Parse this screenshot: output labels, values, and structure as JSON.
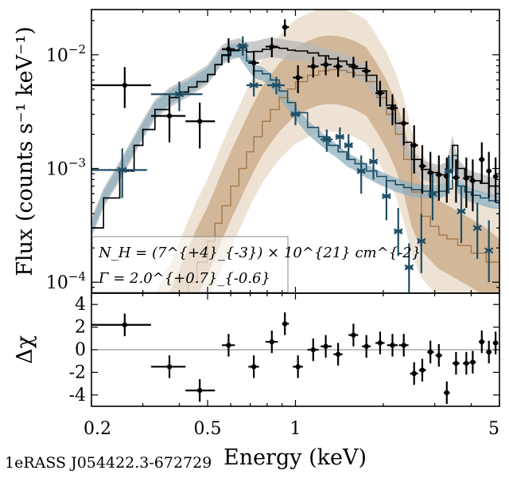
{
  "caption": "1eRASS J054422.3-672729",
  "colors": {
    "total": "#000000",
    "total_band": "#b8b8b8",
    "soft": "#1f4e64",
    "soft_band": "#8fb0bf",
    "hard": "#a5764a",
    "hard_band_inner": "#d2b899",
    "hard_band_outer": "#ede2d4"
  },
  "annotation": {
    "nh_text": "N_H = (7^{+4}_{-3}) × 10^{21} cm^{-2}",
    "gamma_text": "Γ = 2.0^{+0.7}_{-0.6}"
  },
  "chart_data": [
    {
      "type": "scatter",
      "panel": "spectrum",
      "ylabel": "Flux (counts s⁻¹ keV⁻¹)",
      "xlabel": "",
      "xscale": "log",
      "yscale": "log",
      "xlim": [
        0.2,
        5
      ],
      "ylim": [
        8e-05,
        0.025
      ],
      "x_ticks": [
        "0.2",
        "0.5",
        "1",
        "5"
      ],
      "y_ticks": [
        {
          "value": 0.01,
          "mantissa": "10",
          "exp": "−2"
        },
        {
          "value": 0.001,
          "mantissa": "10",
          "exp": "−3"
        },
        {
          "value": 0.0001,
          "mantissa": "10",
          "exp": "−4"
        }
      ],
      "series": [
        {
          "name": "data (dots)",
          "marker": "dot",
          "points": [
            {
              "x": 0.26,
              "y": 0.0054,
              "xlo": 0.2,
              "xhi": 0.32,
              "ylo": 0.0034,
              "yhi": 0.0078
            },
            {
              "x": 0.37,
              "y": 0.0029,
              "xlo": 0.32,
              "xhi": 0.42,
              "ylo": 0.0017,
              "yhi": 0.0044
            },
            {
              "x": 0.47,
              "y": 0.0026,
              "xlo": 0.42,
              "xhi": 0.53,
              "ylo": 0.0015,
              "yhi": 0.0038
            },
            {
              "x": 0.59,
              "y": 0.0112,
              "xlo": 0.56,
              "xhi": 0.62,
              "ylo": 0.0085,
              "yhi": 0.014
            },
            {
              "x": 0.72,
              "y": 0.0085,
              "xlo": 0.69,
              "xhi": 0.75,
              "ylo": 0.0063,
              "yhi": 0.0108
            },
            {
              "x": 0.83,
              "y": 0.0118,
              "xlo": 0.79,
              "xhi": 0.87,
              "ylo": 0.0095,
              "yhi": 0.0142
            },
            {
              "x": 0.92,
              "y": 0.0175,
              "xlo": 0.9,
              "xhi": 0.95,
              "ylo": 0.0145,
              "yhi": 0.0205
            },
            {
              "x": 1.02,
              "y": 0.0063,
              "xlo": 0.98,
              "xhi": 1.06,
              "ylo": 0.0046,
              "yhi": 0.0081
            },
            {
              "x": 1.15,
              "y": 0.0079,
              "xlo": 1.1,
              "xhi": 1.2,
              "ylo": 0.0063,
              "yhi": 0.0096
            },
            {
              "x": 1.27,
              "y": 0.0082,
              "xlo": 1.22,
              "xhi": 1.33,
              "ylo": 0.0066,
              "yhi": 0.0099
            },
            {
              "x": 1.4,
              "y": 0.0079,
              "xlo": 1.35,
              "xhi": 1.45,
              "ylo": 0.0064,
              "yhi": 0.0096
            },
            {
              "x": 1.58,
              "y": 0.0079,
              "xlo": 1.52,
              "xhi": 1.64,
              "ylo": 0.0063,
              "yhi": 0.0096
            },
            {
              "x": 1.75,
              "y": 0.0072,
              "xlo": 1.69,
              "xhi": 1.81,
              "ylo": 0.0058,
              "yhi": 0.0088
            },
            {
              "x": 1.95,
              "y": 0.0046,
              "xlo": 1.88,
              "xhi": 2.02,
              "ylo": 0.0035,
              "yhi": 0.0059
            },
            {
              "x": 2.15,
              "y": 0.0034,
              "xlo": 2.06,
              "xhi": 2.24,
              "ylo": 0.0024,
              "yhi": 0.0045
            },
            {
              "x": 2.35,
              "y": 0.0025,
              "xlo": 2.26,
              "xhi": 2.44,
              "ylo": 0.0016,
              "yhi": 0.0034
            },
            {
              "x": 2.55,
              "y": 0.0016,
              "xlo": 2.47,
              "xhi": 2.63,
              "ylo": 0.0009,
              "yhi": 0.0024
            },
            {
              "x": 2.72,
              "y": 0.00105,
              "xlo": 2.65,
              "xhi": 2.8,
              "ylo": 0.0006,
              "yhi": 0.0016
            },
            {
              "x": 2.9,
              "y": 0.00092,
              "xlo": 2.83,
              "xhi": 2.98,
              "ylo": 0.00055,
              "yhi": 0.0014
            },
            {
              "x": 3.1,
              "y": 0.00088,
              "xlo": 3.02,
              "xhi": 3.18,
              "ylo": 0.00052,
              "yhi": 0.0013
            },
            {
              "x": 3.3,
              "y": 0.00085,
              "xlo": 3.22,
              "xhi": 3.38,
              "ylo": 0.0005,
              "yhi": 0.00125
            },
            {
              "x": 3.55,
              "y": 0.00083,
              "xlo": 3.45,
              "xhi": 3.65,
              "ylo": 0.0005,
              "yhi": 0.0012
            },
            {
              "x": 3.85,
              "y": 0.00082,
              "xlo": 3.75,
              "xhi": 3.95,
              "ylo": 0.00045,
              "yhi": 0.00125
            },
            {
              "x": 4.05,
              "y": 0.00078,
              "xlo": 3.95,
              "xhi": 4.15,
              "ylo": 0.00042,
              "yhi": 0.0012
            },
            {
              "x": 4.35,
              "y": 0.0012,
              "xlo": 4.25,
              "xhi": 4.45,
              "ylo": 0.00075,
              "yhi": 0.0017
            },
            {
              "x": 4.6,
              "y": 0.00095,
              "xlo": 4.5,
              "xhi": 4.7,
              "ylo": 0.00055,
              "yhi": 0.0014
            },
            {
              "x": 4.85,
              "y": 0.00085,
              "xlo": 4.75,
              "xhi": 4.95,
              "ylo": 0.0005,
              "yhi": 0.00125
            }
          ]
        },
        {
          "name": "data (stars)",
          "marker": "star",
          "points": [
            {
              "x": 0.255,
              "y": 0.00097,
              "xlo": 0.2,
              "xhi": 0.31,
              "ylo": 0.00055,
              "yhi": 0.0015
            },
            {
              "x": 0.4,
              "y": 0.0045,
              "xlo": 0.32,
              "xhi": 0.48,
              "ylo": 0.0032,
              "yhi": 0.0058
            },
            {
              "x": 0.66,
              "y": 0.012,
              "xlo": 0.63,
              "xhi": 0.69,
              "ylo": 0.0098,
              "yhi": 0.0145
            },
            {
              "x": 0.72,
              "y": 0.0054,
              "xlo": 0.68,
              "xhi": 0.77,
              "ylo": 0.0043,
              "yhi": 0.0066
            },
            {
              "x": 0.86,
              "y": 0.0054,
              "xlo": 0.8,
              "xhi": 0.92,
              "ylo": 0.0045,
              "yhi": 0.0064
            },
            {
              "x": 1.0,
              "y": 0.003,
              "xlo": 0.96,
              "xhi": 1.04,
              "ylo": 0.0024,
              "yhi": 0.0037
            },
            {
              "x": 1.28,
              "y": 0.0018,
              "xlo": 1.22,
              "xhi": 1.34,
              "ylo": 0.0014,
              "yhi": 0.0022
            },
            {
              "x": 1.42,
              "y": 0.0019,
              "xlo": 1.37,
              "xhi": 1.47,
              "ylo": 0.0015,
              "yhi": 0.0023
            },
            {
              "x": 1.52,
              "y": 0.0016,
              "xlo": 1.47,
              "xhi": 1.57,
              "ylo": 0.0012,
              "yhi": 0.002
            },
            {
              "x": 1.68,
              "y": 0.00095,
              "xlo": 1.63,
              "xhi": 1.73,
              "ylo": 0.0006,
              "yhi": 0.0013
            },
            {
              "x": 1.85,
              "y": 0.00115,
              "xlo": 1.79,
              "xhi": 1.91,
              "ylo": 0.0008,
              "yhi": 0.0015
            },
            {
              "x": 2.05,
              "y": 0.00057,
              "xlo": 1.98,
              "xhi": 2.12,
              "ylo": 0.00035,
              "yhi": 0.0008
            },
            {
              "x": 2.25,
              "y": 0.00028,
              "xlo": 2.18,
              "xhi": 2.32,
              "ylo": 0.00017,
              "yhi": 0.00045
            },
            {
              "x": 2.45,
              "y": 0.000135,
              "xlo": 2.38,
              "xhi": 2.52,
              "ylo": 8e-05,
              "yhi": 0.00022
            },
            {
              "x": 2.7,
              "y": 0.00023,
              "xlo": 2.62,
              "xhi": 2.78,
              "ylo": 0.00012,
              "yhi": 0.0004
            },
            {
              "x": 2.95,
              "y": 0.0006,
              "xlo": 2.86,
              "xhi": 3.04,
              "ylo": 0.00035,
              "yhi": 0.0009
            },
            {
              "x": 3.35,
              "y": 0.00095,
              "xlo": 3.25,
              "xhi": 3.45,
              "ylo": 0.0006,
              "yhi": 0.0013
            },
            {
              "x": 3.7,
              "y": 0.00042,
              "xlo": 3.6,
              "xhi": 3.8,
              "ylo": 0.00022,
              "yhi": 0.0007
            },
            {
              "x": 4.2,
              "y": 0.0003,
              "xlo": 4.1,
              "xhi": 4.3,
              "ylo": 0.00016,
              "yhi": 0.0005
            },
            {
              "x": 4.6,
              "y": 0.00019,
              "xlo": 4.5,
              "xhi": 4.7,
              "ylo": 0.0001,
              "yhi": 0.00035
            }
          ]
        }
      ],
      "models": [
        {
          "name": "total model",
          "x": [
            0.2,
            0.22,
            0.25,
            0.28,
            0.3,
            0.33,
            0.37,
            0.4,
            0.43,
            0.46,
            0.5,
            0.53,
            0.56,
            0.6,
            0.64,
            0.68,
            0.72,
            0.77,
            0.82,
            0.88,
            0.94,
            1.0,
            1.1,
            1.2,
            1.3,
            1.4,
            1.5,
            1.6,
            1.75,
            1.9,
            2.05,
            2.2,
            2.35,
            2.5,
            2.7,
            2.9,
            3.1,
            3.3,
            3.45,
            3.6,
            3.8,
            4.0,
            4.3,
            4.6,
            5.0
          ],
          "y": [
            0.0003,
            0.00055,
            0.00095,
            0.0016,
            0.0022,
            0.0033,
            0.0042,
            0.0047,
            0.0052,
            0.0058,
            0.0067,
            0.0082,
            0.01,
            0.011,
            0.0115,
            0.0106,
            0.0107,
            0.0112,
            0.0116,
            0.0114,
            0.011,
            0.0108,
            0.0104,
            0.0098,
            0.0092,
            0.0088,
            0.0082,
            0.0076,
            0.0066,
            0.0048,
            0.0036,
            0.0025,
            0.0017,
            0.0012,
            0.00098,
            0.00092,
            0.00088,
            0.00093,
            0.0016,
            0.001,
            0.00085,
            0.00078,
            0.00074,
            0.0007,
            0.00066
          ],
          "band_factor": 1.22
        },
        {
          "name": "soft component",
          "x": [
            0.2,
            0.22,
            0.25,
            0.28,
            0.3,
            0.33,
            0.37,
            0.4,
            0.43,
            0.46,
            0.5,
            0.53,
            0.56,
            0.6,
            0.64,
            0.68,
            0.72,
            0.77,
            0.82,
            0.88,
            0.94,
            1.0,
            1.1,
            1.2,
            1.3,
            1.4,
            1.5,
            1.6,
            1.75,
            1.9,
            2.05,
            2.2,
            2.35,
            2.5,
            2.7,
            2.9,
            3.1,
            3.3,
            3.45,
            3.6,
            3.8,
            4.0,
            4.3,
            4.6,
            5.0
          ],
          "y": [
            0.0003,
            0.00055,
            0.00095,
            0.0016,
            0.0022,
            0.0033,
            0.0042,
            0.0047,
            0.0052,
            0.0058,
            0.0067,
            0.0082,
            0.0098,
            0.0108,
            0.011,
            0.0088,
            0.0072,
            0.0068,
            0.006,
            0.0048,
            0.0038,
            0.0031,
            0.0023,
            0.0019,
            0.0016,
            0.0014,
            0.0012,
            0.0011,
            0.00095,
            0.00085,
            0.00078,
            0.00072,
            0.00068,
            0.00065,
            0.00063,
            0.00062,
            0.00063,
            0.00066,
            0.0013,
            0.0007,
            0.00062,
            0.00058,
            0.00055,
            0.00052,
            0.0005
          ],
          "band_factor": 1.15
        },
        {
          "name": "hard component",
          "x": [
            0.3,
            0.33,
            0.37,
            0.4,
            0.43,
            0.46,
            0.5,
            0.53,
            0.56,
            0.6,
            0.64,
            0.68,
            0.72,
            0.77,
            0.82,
            0.88,
            0.94,
            1.0,
            1.1,
            1.2,
            1.3,
            1.4,
            1.5,
            1.6,
            1.75,
            1.9,
            2.05,
            2.2,
            2.35,
            2.5,
            2.7,
            2.9,
            3.1,
            3.3,
            3.6,
            4.0,
            4.5,
            5.0
          ],
          "y": [
            1.2e-05,
            2.2e-05,
            4e-05,
            6.5e-05,
            0.0001,
            0.00015,
            0.00023,
            0.00033,
            0.00047,
            0.0007,
            0.001,
            0.0014,
            0.0019,
            0.0026,
            0.0033,
            0.0042,
            0.005,
            0.0058,
            0.0066,
            0.0072,
            0.0074,
            0.0073,
            0.007,
            0.0066,
            0.0058,
            0.0042,
            0.003,
            0.002,
            0.0012,
            0.00062,
            0.00038,
            0.00031,
            0.00026,
            0.00024,
            0.00021,
            0.00018,
            0.00015,
            0.00012
          ],
          "band_inner_factor": 2.0,
          "band_outer_factor": 3.5
        }
      ]
    },
    {
      "type": "scatter",
      "panel": "residuals",
      "ylabel": "Δχ",
      "xlabel": "Energy (keV)",
      "xscale": "log",
      "xlim": [
        0.2,
        5
      ],
      "ylim": [
        -5,
        5
      ],
      "x_ticks": [
        "0.2",
        "0.5",
        "1",
        "5"
      ],
      "y_ticks": [
        "4",
        "2",
        "0",
        "-2",
        "-4"
      ],
      "y_tick_values": [
        4,
        2,
        0,
        -2,
        -4
      ],
      "zero_line": true,
      "points": [
        {
          "x": 0.26,
          "y": 2.2,
          "xlo": 0.2,
          "xhi": 0.32,
          "yerr": 1.0
        },
        {
          "x": 0.37,
          "y": -1.5,
          "xlo": 0.32,
          "xhi": 0.42,
          "yerr": 1.0
        },
        {
          "x": 0.47,
          "y": -3.6,
          "xlo": 0.42,
          "xhi": 0.53,
          "yerr": 1.0
        },
        {
          "x": 0.59,
          "y": 0.4,
          "xlo": 0.56,
          "xhi": 0.62,
          "yerr": 1.0
        },
        {
          "x": 0.72,
          "y": -1.5,
          "xlo": 0.69,
          "xhi": 0.75,
          "yerr": 1.0
        },
        {
          "x": 0.83,
          "y": 0.7,
          "xlo": 0.79,
          "xhi": 0.87,
          "yerr": 1.0
        },
        {
          "x": 0.92,
          "y": 2.3,
          "xlo": 0.9,
          "xhi": 0.95,
          "yerr": 1.0
        },
        {
          "x": 1.02,
          "y": -1.5,
          "xlo": 0.98,
          "xhi": 1.06,
          "yerr": 1.0
        },
        {
          "x": 1.15,
          "y": 0.0,
          "xlo": 1.1,
          "xhi": 1.2,
          "yerr": 1.0
        },
        {
          "x": 1.27,
          "y": 0.3,
          "xlo": 1.22,
          "xhi": 1.33,
          "yerr": 1.0
        },
        {
          "x": 1.4,
          "y": -0.4,
          "xlo": 1.35,
          "xhi": 1.45,
          "yerr": 1.0
        },
        {
          "x": 1.58,
          "y": 1.3,
          "xlo": 1.52,
          "xhi": 1.64,
          "yerr": 1.0
        },
        {
          "x": 1.75,
          "y": 0.3,
          "xlo": 1.69,
          "xhi": 1.81,
          "yerr": 1.0
        },
        {
          "x": 1.95,
          "y": 0.6,
          "xlo": 1.88,
          "xhi": 2.02,
          "yerr": 1.0
        },
        {
          "x": 2.15,
          "y": 0.4,
          "xlo": 2.06,
          "xhi": 2.24,
          "yerr": 1.0
        },
        {
          "x": 2.35,
          "y": 0.4,
          "xlo": 2.26,
          "xhi": 2.44,
          "yerr": 1.0
        },
        {
          "x": 2.55,
          "y": -2.1,
          "xlo": 2.47,
          "xhi": 2.63,
          "yerr": 1.0
        },
        {
          "x": 2.72,
          "y": -1.8,
          "xlo": 2.65,
          "xhi": 2.8,
          "yerr": 1.0
        },
        {
          "x": 2.9,
          "y": -0.2,
          "xlo": 2.83,
          "xhi": 2.98,
          "yerr": 1.0
        },
        {
          "x": 3.1,
          "y": -0.5,
          "xlo": 3.02,
          "xhi": 3.18,
          "yerr": 1.0
        },
        {
          "x": 3.3,
          "y": -3.8,
          "xlo": 3.22,
          "xhi": 3.38,
          "yerr": 1.0
        },
        {
          "x": 3.55,
          "y": -1.2,
          "xlo": 3.45,
          "xhi": 3.65,
          "yerr": 1.0
        },
        {
          "x": 3.85,
          "y": -1.2,
          "xlo": 3.75,
          "xhi": 3.95,
          "yerr": 1.0
        },
        {
          "x": 4.05,
          "y": -1.1,
          "xlo": 3.95,
          "xhi": 4.15,
          "yerr": 1.0
        },
        {
          "x": 4.35,
          "y": 0.7,
          "xlo": 4.25,
          "xhi": 4.45,
          "yerr": 1.0
        },
        {
          "x": 4.6,
          "y": -0.2,
          "xlo": 4.5,
          "xhi": 4.7,
          "yerr": 1.0
        },
        {
          "x": 4.85,
          "y": 0.6,
          "xlo": 4.75,
          "xhi": 4.95,
          "yerr": 1.0
        }
      ]
    }
  ]
}
